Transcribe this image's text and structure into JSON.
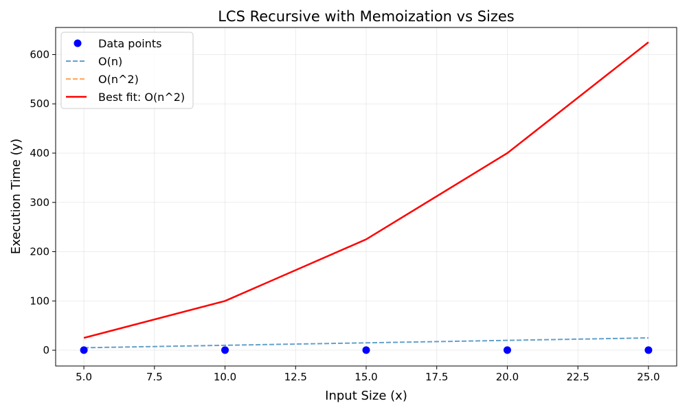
{
  "chart_data": {
    "type": "line",
    "title": "LCS Recursive with Memoization vs Sizes",
    "xlabel": "Input Size (x)",
    "ylabel": "Execution Time (y)",
    "xlim": [
      4.0,
      26.0
    ],
    "ylim": [
      -32,
      655
    ],
    "xticks": [
      5.0,
      7.5,
      10.0,
      12.5,
      15.0,
      17.5,
      20.0,
      22.5,
      25.0
    ],
    "xtick_labels": [
      "5.0",
      "7.5",
      "10.0",
      "12.5",
      "15.0",
      "17.5",
      "20.0",
      "22.5",
      "25.0"
    ],
    "yticks": [
      0,
      100,
      200,
      300,
      400,
      500,
      600
    ],
    "ytick_labels": [
      "0",
      "100",
      "200",
      "300",
      "400",
      "500",
      "600"
    ],
    "grid": true,
    "legend_position": "top-left",
    "series": [
      {
        "name": "Data points",
        "kind": "scatter",
        "color": "#0000ff",
        "x": [
          5,
          10,
          15,
          20,
          25
        ],
        "y": [
          0.3,
          0.3,
          0.3,
          0.3,
          0.3
        ]
      },
      {
        "name": "O(n)",
        "kind": "dashed",
        "color": "#1f77b4",
        "x": [
          5,
          10,
          15,
          20,
          25
        ],
        "y": [
          5,
          10,
          15,
          20,
          25
        ]
      },
      {
        "name": "O(n^2)",
        "kind": "dashed",
        "color": "#ff7f0e",
        "x": [
          5,
          10,
          15,
          20,
          25
        ],
        "y": [
          25,
          100,
          225,
          400,
          625
        ]
      },
      {
        "name": "Best fit: O(n^2)",
        "kind": "solid",
        "color": "#ff0000",
        "x": [
          5,
          10,
          15,
          20,
          25
        ],
        "y": [
          25,
          100,
          225,
          400,
          625
        ]
      }
    ]
  }
}
